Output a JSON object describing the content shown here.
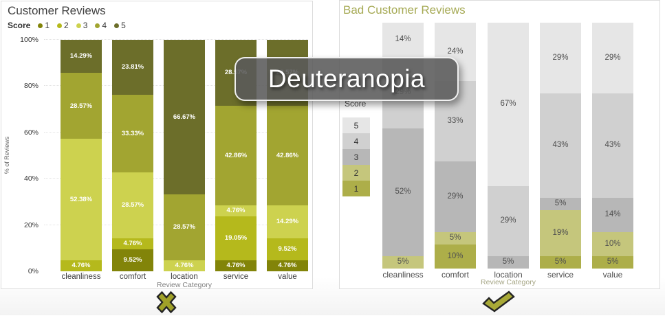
{
  "overlay": {
    "label": "Deuteranopia"
  },
  "verdicts": {
    "left": "cross",
    "right": "check"
  },
  "chart_data": [
    {
      "type": "bar",
      "stacked": true,
      "title": "Customer Reviews",
      "title_color": "#3f3f3f",
      "legend": {
        "title": "Score",
        "position": "top-row"
      },
      "categories": [
        "cleanliness",
        "comfort",
        "location",
        "service",
        "value"
      ],
      "xlabel": "Review Category",
      "ylabel": "% of Reviews",
      "yticks": [
        "0%",
        "20%",
        "40%",
        "60%",
        "80%",
        "100%"
      ],
      "ylim": [
        0,
        100
      ],
      "series": [
        {
          "name": "1",
          "color": "#828409",
          "values": [
            0,
            9.52,
            0,
            4.76,
            4.76
          ],
          "labels": [
            null,
            "9.52%",
            null,
            "4.76%",
            "4.76%"
          ]
        },
        {
          "name": "2",
          "color": "#b5b91c",
          "values": [
            4.76,
            4.76,
            0,
            19.05,
            9.52
          ],
          "labels": [
            "4.76%",
            "4.76%",
            null,
            "19.05%",
            "9.52%"
          ]
        },
        {
          "name": "3",
          "color": "#cdd24f",
          "values": [
            52.38,
            28.57,
            4.76,
            4.76,
            14.29
          ],
          "labels": [
            "52.38%",
            "28.57%",
            "4.76%",
            "4.76%",
            "14.29%"
          ]
        },
        {
          "name": "4",
          "color": "#a2a531",
          "values": [
            28.57,
            33.33,
            28.57,
            42.86,
            42.86
          ],
          "labels": [
            "28.57%",
            "33.33%",
            "28.57%",
            "42.86%",
            "42.86%"
          ]
        },
        {
          "name": "5",
          "color": "#6c6e2a",
          "values": [
            14.29,
            23.81,
            66.67,
            28.57,
            28.57
          ],
          "labels": [
            "14.29%",
            "23.81%",
            "66.67%",
            "28.57%",
            "28.57%"
          ]
        }
      ]
    },
    {
      "type": "bar",
      "stacked": true,
      "title": "Bad Customer Reviews",
      "title_color": "#a6aa55",
      "legend": {
        "title": "Score",
        "position": "left-column",
        "order": [
          "5",
          "4",
          "3",
          "2",
          "1"
        ]
      },
      "categories": [
        "cleanliness",
        "comfort",
        "location",
        "service",
        "value"
      ],
      "xlabel": "Review Category",
      "ylim": [
        0,
        100
      ],
      "series": [
        {
          "name": "1",
          "color": "#adae49",
          "values": [
            0,
            10,
            0,
            5,
            5
          ],
          "labels": [
            null,
            "10%",
            null,
            "5%",
            "5%"
          ]
        },
        {
          "name": "2",
          "color": "#c5c67c",
          "values": [
            5,
            5,
            0,
            19,
            10
          ],
          "labels": [
            "5%",
            "5%",
            null,
            "19%",
            "10%"
          ]
        },
        {
          "name": "3",
          "color": "#b7b7b7",
          "values": [
            52,
            29,
            5,
            5,
            14
          ],
          "labels": [
            "52%",
            "29%",
            "5%",
            "5%",
            "14%"
          ]
        },
        {
          "name": "4",
          "color": "#d0d0d0",
          "values": [
            29,
            33,
            29,
            43,
            43
          ],
          "labels": [
            "29%",
            "33%",
            "29%",
            "43%",
            "43%"
          ]
        },
        {
          "name": "5",
          "color": "#e6e6e6",
          "values": [
            14,
            24,
            67,
            29,
            29
          ],
          "labels": [
            "14%",
            "24%",
            "67%",
            "29%",
            "29%"
          ]
        }
      ]
    }
  ]
}
